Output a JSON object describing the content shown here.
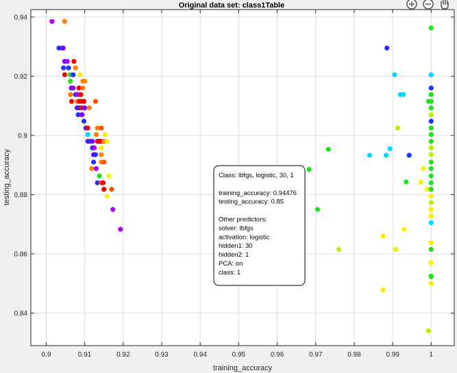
{
  "toolbar": {
    "icons": [
      "zoom-in-icon",
      "zoom-out-icon",
      "pan-hand-icon"
    ]
  },
  "chart_data": {
    "type": "scatter",
    "title": "Original data set: class1Table",
    "xlabel": "training_accuracy",
    "ylabel": "testing_accuracy",
    "xlim": [
      0.896,
      1.006
    ],
    "ylim": [
      0.829,
      0.9425
    ],
    "xticks": [
      0.9,
      0.91,
      0.92,
      0.93,
      0.94,
      0.95,
      0.96,
      0.97,
      0.98,
      0.99,
      1
    ],
    "xtick_labels": [
      "0.9",
      "0.91",
      "0.92",
      "0.93",
      "0.94",
      "0.95",
      "0.96",
      "0.97",
      "0.98",
      "0.99",
      "1"
    ],
    "yticks": [
      0.84,
      0.86,
      0.88,
      0.9,
      0.92,
      0.94
    ],
    "ytick_labels": [
      "0.84",
      "0.86",
      "0.88",
      "0.9",
      "0.92",
      "0.94"
    ],
    "grid": true,
    "legend": "none",
    "colors": {
      "purple": "#b000ff",
      "violet": "#8000ff",
      "blue": "#2030ff",
      "cyan": "#00d8ff",
      "green": "#20e020",
      "lime": "#b8f000",
      "yellow": "#f8f000",
      "orange": "#ff8000",
      "orange_red": "#ff5000",
      "red": "#f00000"
    },
    "points": [
      {
        "x": 0.9015,
        "y": 0.9385,
        "c": "purple"
      },
      {
        "x": 0.9048,
        "y": 0.9385,
        "c": "orange"
      },
      {
        "x": 0.9033,
        "y": 0.9295,
        "c": "blue"
      },
      {
        "x": 0.9042,
        "y": 0.9295,
        "c": "blue"
      },
      {
        "x": 0.9044,
        "y": 0.9295,
        "c": "violet"
      },
      {
        "x": 0.9048,
        "y": 0.925,
        "c": "violet"
      },
      {
        "x": 0.9055,
        "y": 0.925,
        "c": "purple"
      },
      {
        "x": 0.9072,
        "y": 0.925,
        "c": "red"
      },
      {
        "x": 0.9045,
        "y": 0.9228,
        "c": "blue"
      },
      {
        "x": 0.9058,
        "y": 0.9228,
        "c": "blue"
      },
      {
        "x": 0.9076,
        "y": 0.9228,
        "c": "orange"
      },
      {
        "x": 0.9048,
        "y": 0.9205,
        "c": "red"
      },
      {
        "x": 0.9062,
        "y": 0.9205,
        "c": "green"
      },
      {
        "x": 0.907,
        "y": 0.9205,
        "c": "blue"
      },
      {
        "x": 0.9088,
        "y": 0.9205,
        "c": "yellow"
      },
      {
        "x": 0.9063,
        "y": 0.9183,
        "c": "green"
      },
      {
        "x": 0.9095,
        "y": 0.9183,
        "c": "orange"
      },
      {
        "x": 0.91,
        "y": 0.9183,
        "c": "orange"
      },
      {
        "x": 0.9065,
        "y": 0.916,
        "c": "violet"
      },
      {
        "x": 0.907,
        "y": 0.916,
        "c": "violet"
      },
      {
        "x": 0.9085,
        "y": 0.916,
        "c": "red"
      },
      {
        "x": 0.9095,
        "y": 0.916,
        "c": "orange"
      },
      {
        "x": 0.9063,
        "y": 0.9138,
        "c": "orange"
      },
      {
        "x": 0.9076,
        "y": 0.9138,
        "c": "blue"
      },
      {
        "x": 0.9082,
        "y": 0.9138,
        "c": "purple"
      },
      {
        "x": 0.909,
        "y": 0.9138,
        "c": "red"
      },
      {
        "x": 0.9066,
        "y": 0.9115,
        "c": "red"
      },
      {
        "x": 0.908,
        "y": 0.9115,
        "c": "orange"
      },
      {
        "x": 0.9086,
        "y": 0.9115,
        "c": "red"
      },
      {
        "x": 0.9093,
        "y": 0.9115,
        "c": "red"
      },
      {
        "x": 0.9098,
        "y": 0.9115,
        "c": "red"
      },
      {
        "x": 0.9128,
        "y": 0.9115,
        "c": "orange_red"
      },
      {
        "x": 0.908,
        "y": 0.9093,
        "c": "violet"
      },
      {
        "x": 0.9085,
        "y": 0.9093,
        "c": "blue"
      },
      {
        "x": 0.9092,
        "y": 0.9093,
        "c": "red"
      },
      {
        "x": 0.91,
        "y": 0.9093,
        "c": "violet"
      },
      {
        "x": 0.9112,
        "y": 0.9093,
        "c": "orange"
      },
      {
        "x": 0.9083,
        "y": 0.907,
        "c": "blue"
      },
      {
        "x": 0.9093,
        "y": 0.907,
        "c": "violet"
      },
      {
        "x": 0.9098,
        "y": 0.9048,
        "c": "blue"
      },
      {
        "x": 0.9103,
        "y": 0.9025,
        "c": "blue"
      },
      {
        "x": 0.9108,
        "y": 0.9025,
        "c": "red"
      },
      {
        "x": 0.9133,
        "y": 0.9025,
        "c": "orange"
      },
      {
        "x": 0.9143,
        "y": 0.9025,
        "c": "orange_red"
      },
      {
        "x": 0.9108,
        "y": 0.9003,
        "c": "cyan"
      },
      {
        "x": 0.913,
        "y": 0.9003,
        "c": "orange"
      },
      {
        "x": 0.9153,
        "y": 0.9003,
        "c": "yellow"
      },
      {
        "x": 0.9108,
        "y": 0.898,
        "c": "violet"
      },
      {
        "x": 0.9113,
        "y": 0.898,
        "c": "blue"
      },
      {
        "x": 0.912,
        "y": 0.898,
        "c": "violet"
      },
      {
        "x": 0.9133,
        "y": 0.898,
        "c": "red"
      },
      {
        "x": 0.9138,
        "y": 0.898,
        "c": "red"
      },
      {
        "x": 0.9143,
        "y": 0.898,
        "c": "red"
      },
      {
        "x": 0.915,
        "y": 0.898,
        "c": "orange"
      },
      {
        "x": 0.9158,
        "y": 0.898,
        "c": "yellow"
      },
      {
        "x": 0.912,
        "y": 0.8958,
        "c": "blue"
      },
      {
        "x": 0.9125,
        "y": 0.8958,
        "c": "purple"
      },
      {
        "x": 0.9143,
        "y": 0.8958,
        "c": "yellow"
      },
      {
        "x": 0.9123,
        "y": 0.8935,
        "c": "violet"
      },
      {
        "x": 0.9128,
        "y": 0.8935,
        "c": "blue"
      },
      {
        "x": 0.9143,
        "y": 0.8935,
        "c": "orange"
      },
      {
        "x": 0.9123,
        "y": 0.891,
        "c": "blue"
      },
      {
        "x": 0.9143,
        "y": 0.891,
        "c": "orange"
      },
      {
        "x": 0.915,
        "y": 0.891,
        "c": "orange_red"
      },
      {
        "x": 0.9118,
        "y": 0.8888,
        "c": "orange"
      },
      {
        "x": 0.913,
        "y": 0.8888,
        "c": "purple"
      },
      {
        "x": 0.9138,
        "y": 0.8863,
        "c": "green"
      },
      {
        "x": 0.9163,
        "y": 0.8863,
        "c": "yellow"
      },
      {
        "x": 0.9133,
        "y": 0.884,
        "c": "blue"
      },
      {
        "x": 0.9143,
        "y": 0.884,
        "c": "orange_red"
      },
      {
        "x": 0.9148,
        "y": 0.884,
        "c": "red"
      },
      {
        "x": 0.915,
        "y": 0.8818,
        "c": "red"
      },
      {
        "x": 0.917,
        "y": 0.8818,
        "c": "orange_red"
      },
      {
        "x": 0.9158,
        "y": 0.8795,
        "c": "yellow"
      },
      {
        "x": 0.9173,
        "y": 0.875,
        "c": "purple"
      },
      {
        "x": 0.9193,
        "y": 0.8683,
        "c": "purple"
      },
      {
        "x": 0.9448,
        "y": 0.85,
        "c": "yellow",
        "highlight": true
      },
      {
        "x": 0.9683,
        "y": 0.8885,
        "c": "green"
      },
      {
        "x": 0.9733,
        "y": 0.8953,
        "c": "green"
      },
      {
        "x": 0.9705,
        "y": 0.875,
        "c": "green"
      },
      {
        "x": 0.976,
        "y": 0.8615,
        "c": "lime"
      },
      {
        "x": 0.9885,
        "y": 0.9295,
        "c": "blue"
      },
      {
        "x": 0.9905,
        "y": 0.9205,
        "c": "cyan"
      },
      {
        "x": 0.992,
        "y": 0.9138,
        "c": "cyan"
      },
      {
        "x": 0.9928,
        "y": 0.9138,
        "c": "cyan"
      },
      {
        "x": 0.9913,
        "y": 0.9025,
        "c": "lime"
      },
      {
        "x": 0.984,
        "y": 0.8933,
        "c": "cyan"
      },
      {
        "x": 0.9883,
        "y": 0.8933,
        "c": "cyan"
      },
      {
        "x": 0.9893,
        "y": 0.8955,
        "c": "cyan"
      },
      {
        "x": 0.9943,
        "y": 0.8933,
        "c": "blue"
      },
      {
        "x": 0.9935,
        "y": 0.8843,
        "c": "green"
      },
      {
        "x": 0.9875,
        "y": 0.866,
        "c": "yellow"
      },
      {
        "x": 0.9908,
        "y": 0.8615,
        "c": "yellow"
      },
      {
        "x": 0.993,
        "y": 0.8683,
        "c": "yellow"
      },
      {
        "x": 0.9875,
        "y": 0.8478,
        "c": "yellow"
      },
      {
        "x": 0.9973,
        "y": 0.8843,
        "c": "yellow"
      },
      {
        "x": 0.998,
        "y": 0.8888,
        "c": "yellow"
      },
      {
        "x": 0.999,
        "y": 0.8818,
        "c": "yellow"
      },
      {
        "x": 0.9993,
        "y": 0.834,
        "c": "lime"
      },
      {
        "x": 1.0,
        "y": 0.9363,
        "c": "green"
      },
      {
        "x": 1.0,
        "y": 0.9205,
        "c": "cyan"
      },
      {
        "x": 1.0,
        "y": 0.916,
        "c": "blue"
      },
      {
        "x": 1.0,
        "y": 0.9138,
        "c": "green"
      },
      {
        "x": 0.9993,
        "y": 0.9115,
        "c": "green"
      },
      {
        "x": 1.0,
        "y": 0.9115,
        "c": "green"
      },
      {
        "x": 1.0,
        "y": 0.9093,
        "c": "green"
      },
      {
        "x": 1.0,
        "y": 0.907,
        "c": "lime"
      },
      {
        "x": 1.0,
        "y": 0.9048,
        "c": "blue"
      },
      {
        "x": 1.0,
        "y": 0.9025,
        "c": "green"
      },
      {
        "x": 1.0,
        "y": 0.9003,
        "c": "green"
      },
      {
        "x": 1.0,
        "y": 0.898,
        "c": "green"
      },
      {
        "x": 1.0,
        "y": 0.8958,
        "c": "lime"
      },
      {
        "x": 1.0,
        "y": 0.8935,
        "c": "lime"
      },
      {
        "x": 1.0,
        "y": 0.891,
        "c": "green"
      },
      {
        "x": 1.0,
        "y": 0.8888,
        "c": "green"
      },
      {
        "x": 1.0,
        "y": 0.8863,
        "c": "green"
      },
      {
        "x": 1.0,
        "y": 0.884,
        "c": "green"
      },
      {
        "x": 0.9993,
        "y": 0.8818,
        "c": "yellow"
      },
      {
        "x": 1.0,
        "y": 0.8818,
        "c": "green"
      },
      {
        "x": 1.0,
        "y": 0.8795,
        "c": "yellow"
      },
      {
        "x": 1.0,
        "y": 0.8773,
        "c": "lime"
      },
      {
        "x": 1.0,
        "y": 0.875,
        "c": "yellow"
      },
      {
        "x": 1.0,
        "y": 0.8728,
        "c": "yellow"
      },
      {
        "x": 1.0,
        "y": 0.8705,
        "c": "cyan"
      },
      {
        "x": 1.0,
        "y": 0.8638,
        "c": "yellow"
      },
      {
        "x": 1.0,
        "y": 0.8615,
        "c": "green"
      },
      {
        "x": 1.0,
        "y": 0.857,
        "c": "yellow"
      },
      {
        "x": 1.0,
        "y": 0.8525,
        "c": "green"
      },
      {
        "x": 1.0,
        "y": 0.8523,
        "c": "green"
      },
      {
        "x": 1.0,
        "y": 0.85,
        "c": "yellow"
      }
    ],
    "datatip": {
      "lines": [
        "Class: lbfgs,  logistic, 30, 1",
        "",
        "training_accuracy: 0.94476",
        "testing_accuracy: 0.85",
        "",
        "Other predictors:",
        "solver: lbfgs",
        "activation: logistic",
        "hidden1: 30",
        "hidden2: 1",
        "PCA: on",
        "class: 1"
      ]
    }
  }
}
